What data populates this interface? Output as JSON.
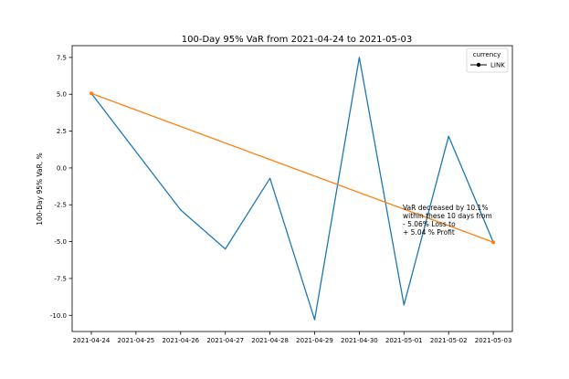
{
  "chart_data": {
    "type": "line",
    "title": "100-Day 95% VaR from 2021-04-24 to 2021-05-03",
    "ylabel": "100-Day 95% VaR, %",
    "xlabel": "",
    "categories": [
      "2021-04-24",
      "2021-04-25",
      "2021-04-26",
      "2021-04-27",
      "2021-04-28",
      "2021-04-29",
      "2021-04-30",
      "2021-05-01",
      "2021-05-02",
      "2021-05-03"
    ],
    "series": [
      {
        "name": "LINK",
        "color": "#1f77b4",
        "x": [
          "2021-04-24",
          "2021-04-26",
          "2021-04-27",
          "2021-04-28",
          "2021-04-29",
          "2021-04-30",
          "2021-05-01",
          "2021-05-02",
          "2021-05-03"
        ],
        "values": [
          5.06,
          -2.85,
          -5.5,
          -0.7,
          -10.3,
          7.5,
          -9.3,
          2.15,
          -5.04
        ]
      }
    ],
    "trend": {
      "color": "#ff7f0e",
      "x": [
        "2021-04-24",
        "2021-05-03"
      ],
      "values": [
        5.06,
        -5.04
      ]
    },
    "yticks": [
      "7.5",
      "5.0",
      "2.5",
      "0.0",
      "-2.5",
      "-5.0",
      "-7.5",
      "-10.0"
    ],
    "ytick_values": [
      7.5,
      5.0,
      2.5,
      0.0,
      -2.5,
      -5.0,
      -7.5,
      -10.0
    ],
    "ylim": [
      -11.1,
      8.3
    ],
    "grid": false,
    "legend": {
      "title": "currency",
      "label": "LINK",
      "placement": "top-right"
    },
    "annotation": {
      "lines": [
        "VaR decreased by 10.1%",
        "within these 10 days from",
        "- 5.06% Loss to",
        "+ 5.04 % Profit"
      ]
    }
  }
}
